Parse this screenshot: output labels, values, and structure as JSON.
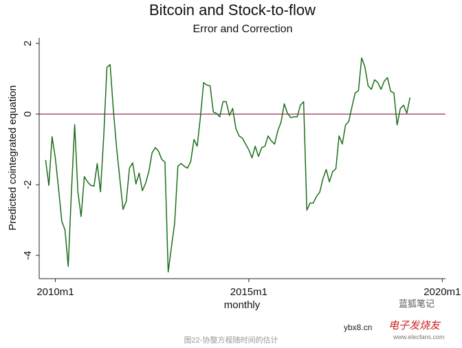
{
  "chart_data": {
    "type": "line",
    "title": "Bitcoin and Stock-to-flow",
    "subtitle": "Error and Correction",
    "x_label": "monthly",
    "y_label": "Predicted cointegrated equation",
    "x": [
      "2009m10",
      "2009m11",
      "2009m12",
      "2010m1",
      "2010m2",
      "2010m3",
      "2010m4",
      "2010m5",
      "2010m6",
      "2010m7",
      "2010m8",
      "2010m9",
      "2010m10",
      "2010m11",
      "2010m12",
      "2011m1",
      "2011m2",
      "2011m3",
      "2011m4",
      "2011m5",
      "2011m6",
      "2011m7",
      "2011m8",
      "2011m9",
      "2011m10",
      "2011m11",
      "2011m12",
      "2012m1",
      "2012m2",
      "2012m3",
      "2012m4",
      "2012m5",
      "2012m6",
      "2012m7",
      "2012m8",
      "2012m9",
      "2012m10",
      "2012m11",
      "2012m12",
      "2013m1",
      "2013m2",
      "2013m3",
      "2013m4",
      "2013m5",
      "2013m6",
      "2013m7",
      "2013m8",
      "2013m9",
      "2013m10",
      "2013m11",
      "2013m12",
      "2014m1",
      "2014m2",
      "2014m3",
      "2014m4",
      "2014m5",
      "2014m6",
      "2014m7",
      "2014m8",
      "2014m9",
      "2014m10",
      "2014m11",
      "2014m12",
      "2015m1",
      "2015m2",
      "2015m3",
      "2015m4",
      "2015m5",
      "2015m6",
      "2015m7",
      "2015m8",
      "2015m9",
      "2015m10",
      "2015m11",
      "2015m12",
      "2016m1",
      "2016m2",
      "2016m3",
      "2016m4",
      "2016m5",
      "2016m6",
      "2016m7",
      "2016m8",
      "2016m9",
      "2016m10",
      "2016m11",
      "2016m12",
      "2017m1",
      "2017m2",
      "2017m3",
      "2017m4",
      "2017m5",
      "2017m6",
      "2017m7",
      "2017m8",
      "2017m9",
      "2017m10",
      "2017m11",
      "2017m12",
      "2018m1",
      "2018m2",
      "2018m3",
      "2018m4",
      "2018m5",
      "2018m6",
      "2018m7",
      "2018m8",
      "2018m9",
      "2018m10",
      "2018m11",
      "2018m12",
      "2019m1",
      "2019m2",
      "2019m3"
    ],
    "series": [
      {
        "name": "Predicted cointegrated equation",
        "color": "#1a6e1a",
        "values": [
          -1.3,
          -2.02,
          -0.64,
          -1.24,
          -2.1,
          -3.03,
          -3.28,
          -4.31,
          -2.2,
          -0.3,
          -2.2,
          -2.9,
          -1.77,
          -1.92,
          -2.02,
          -2.04,
          -1.4,
          -2.2,
          -0.66,
          1.32,
          1.4,
          0.12,
          -0.95,
          -1.82,
          -2.7,
          -2.47,
          -1.53,
          -1.38,
          -1.98,
          -1.67,
          -2.17,
          -1.96,
          -1.63,
          -1.1,
          -0.95,
          -1.05,
          -1.28,
          -1.36,
          -4.47,
          -3.77,
          -3.1,
          -1.48,
          -1.4,
          -1.48,
          -1.53,
          -1.34,
          -0.72,
          -0.91,
          -0.08,
          0.89,
          0.82,
          0.8,
          0.06,
          0.02,
          -0.08,
          0.35,
          0.35,
          -0.04,
          0.16,
          -0.41,
          -0.62,
          -0.68,
          -0.85,
          -1.01,
          -1.24,
          -0.91,
          -1.2,
          -0.95,
          -0.91,
          -0.62,
          -0.76,
          -0.85,
          -0.47,
          -0.23,
          0.29,
          0.02,
          -0.1,
          -0.08,
          -0.08,
          0.25,
          0.35,
          -2.72,
          -2.52,
          -2.52,
          -2.33,
          -2.21,
          -1.83,
          -1.57,
          -1.92,
          -1.63,
          -1.55,
          -0.62,
          -0.85,
          -0.31,
          -0.21,
          0.21,
          0.6,
          0.66,
          1.59,
          1.34,
          0.8,
          0.7,
          0.97,
          0.89,
          0.7,
          0.93,
          1.03,
          0.64,
          0.6,
          -0.31,
          0.16,
          0.25,
          0.02,
          0.47
        ]
      }
    ],
    "xlim": [
      "2009m8",
      "2020m2"
    ],
    "xticks": [
      "2010m1",
      "2015m1",
      "2020m1"
    ],
    "ylim": [
      -4.66,
      2.16
    ],
    "yticks": [
      -4,
      -2,
      0,
      2
    ],
    "reference_line": {
      "value": 0,
      "color": "#8b1a3a"
    },
    "grid": false
  },
  "caption": "图22-协整方程随时间的估计",
  "watermarks": [
    "蓝狐笔记",
    "ybx8.cn",
    "电子发烧友",
    "www.elecfans.com"
  ]
}
